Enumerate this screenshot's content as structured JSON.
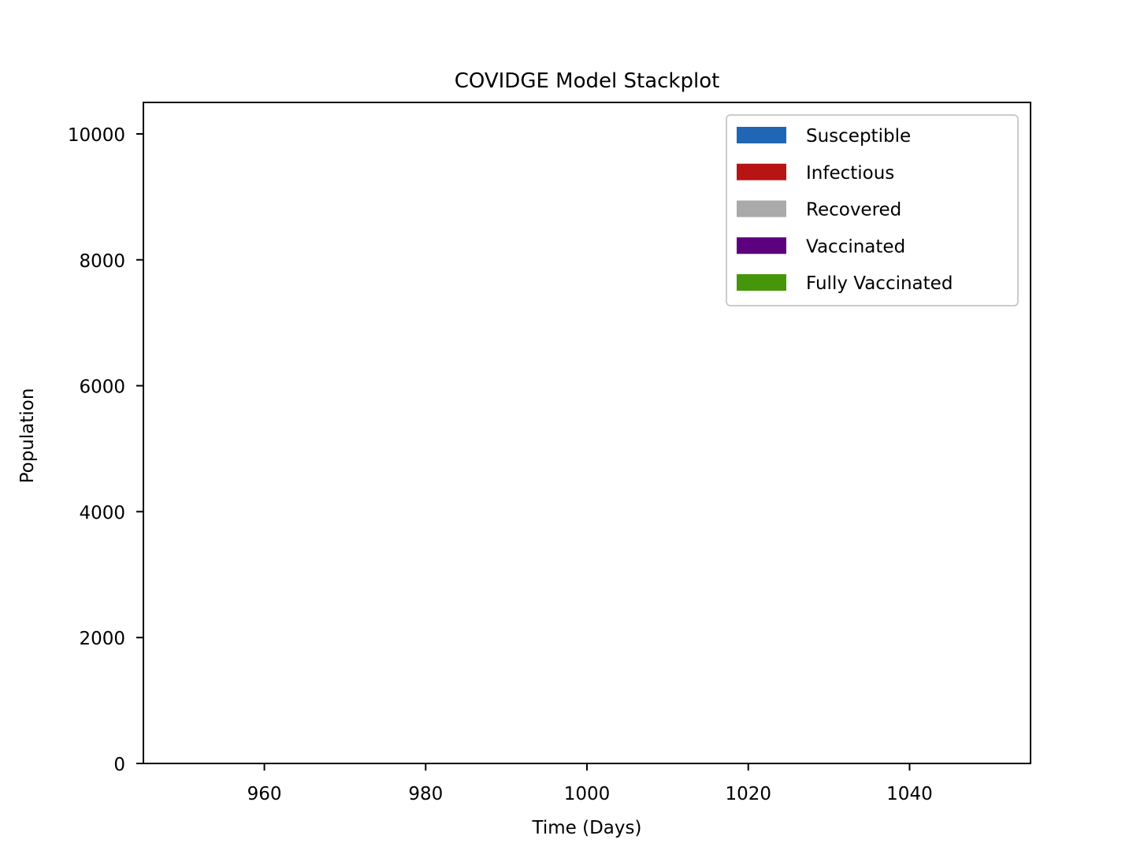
{
  "chart_data": {
    "type": "area",
    "title": "COVIDGE Model Stackplot",
    "xlabel": "Time (Days)",
    "ylabel": "Population",
    "xlim": [
      945,
      1055
    ],
    "ylim": [
      0,
      10500
    ],
    "x_ticks": [
      960,
      980,
      1000,
      1020,
      1040
    ],
    "y_ticks": [
      0,
      2000,
      4000,
      6000,
      8000,
      10000
    ],
    "grid": false,
    "legend_position": "top-right",
    "series": [
      {
        "name": "Susceptible",
        "color": "#1f67b4",
        "values": []
      },
      {
        "name": "Infectious",
        "color": "#b81414",
        "values": []
      },
      {
        "name": "Recovered",
        "color": "#aaaaaa",
        "values": []
      },
      {
        "name": "Vaccinated",
        "color": "#5c0080",
        "values": []
      },
      {
        "name": "Fully Vaccinated",
        "color": "#45960a",
        "values": []
      }
    ]
  }
}
